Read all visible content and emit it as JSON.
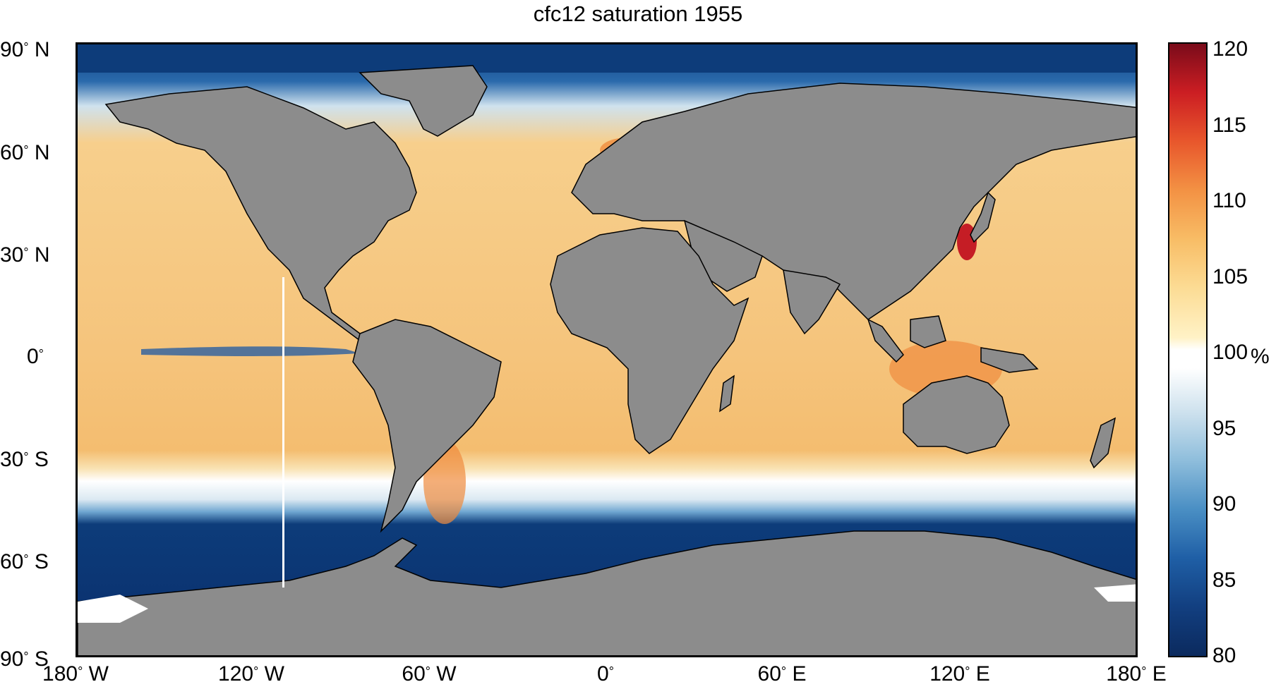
{
  "title": "cfc12 saturation 1955",
  "colors": {
    "land": "#8c8c8c",
    "ocean_warm": "#f4c27a",
    "ocean_hot": "#ef8c3e",
    "ocean_cold": "#0d3c7a",
    "ocean_cool": "#6fa6d1",
    "ocean_neutral": "#ffffff",
    "coast": "#000000"
  },
  "lat_labels": [
    "90° N",
    "60° N",
    "30° N",
    "0°",
    "30° S",
    "60° S",
    "90° S"
  ],
  "lon_labels": [
    "180° W",
    "120° W",
    "60° W",
    "0°",
    "60° E",
    "120° E",
    "180° E"
  ],
  "colorbar": {
    "ticks": [
      "120",
      "115",
      "110",
      "105",
      "100",
      "95",
      "90",
      "85",
      "80"
    ],
    "min": 80,
    "max": 120,
    "unit": "%"
  }
}
